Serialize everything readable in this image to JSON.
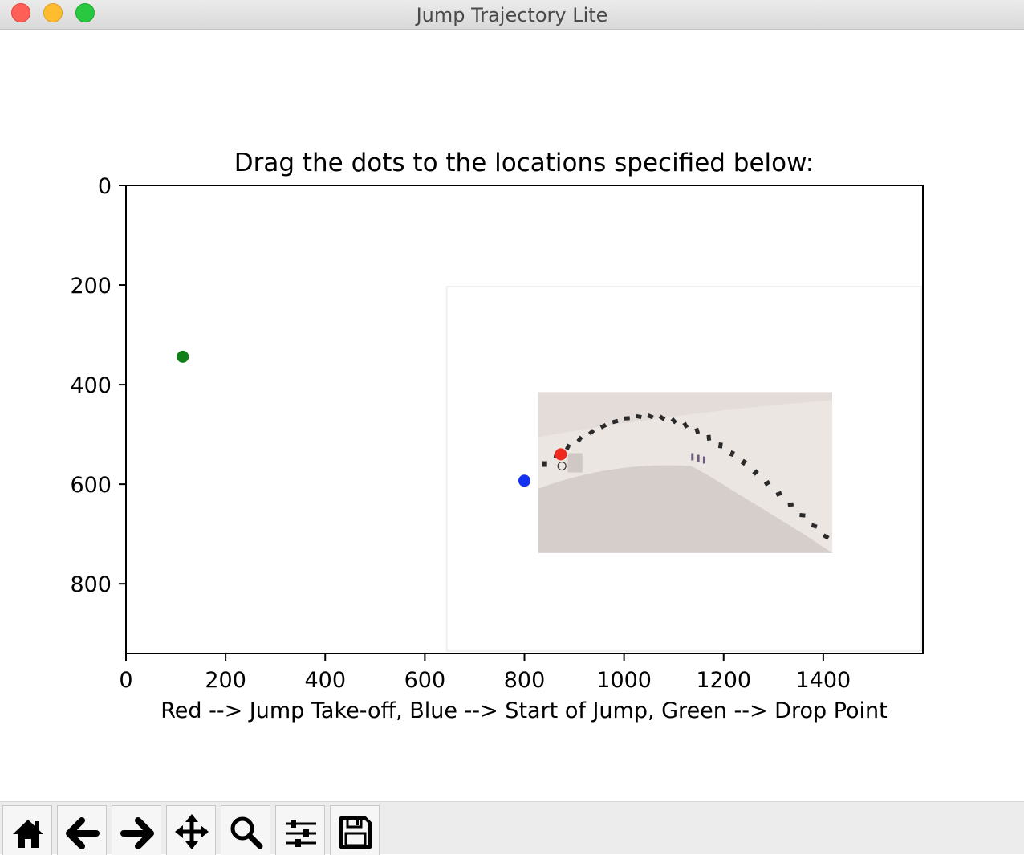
{
  "window": {
    "title": "Jump Trajectory Lite"
  },
  "chart_data": {
    "type": "scatter",
    "title": "Drag the dots to the locations specified below:",
    "xlabel": "Red --> Jump Take-off, Blue --> Start of Jump, Green --> Drop Point",
    "ylabel": "",
    "xlim": [
      0,
      1600
    ],
    "ylim": [
      940,
      0
    ],
    "xticks": [
      "0",
      "200",
      "400",
      "600",
      "800",
      "1000",
      "1200",
      "1400"
    ],
    "yticks": [
      "0",
      "200",
      "400",
      "600",
      "800"
    ],
    "xtick_values": [
      0,
      200,
      400,
      600,
      800,
      1000,
      1200,
      1400
    ],
    "ytick_values": [
      0,
      200,
      400,
      600,
      800
    ],
    "grid": false,
    "points": [
      {
        "name": "red-dot",
        "x": 873,
        "y": 540,
        "color": "#ee2a1f"
      },
      {
        "name": "blue-dot",
        "x": 800,
        "y": 593,
        "color": "#1431f0"
      },
      {
        "name": "green-dot",
        "x": 114,
        "y": 344,
        "color": "#118117"
      }
    ],
    "image": {
      "description": "snowboard jump sequence photo",
      "extent_x": [
        828,
        1418
      ],
      "extent_y": [
        415,
        738
      ]
    },
    "inset_frame": {
      "extent_x": [
        644,
        1597
      ],
      "extent_y": [
        203,
        935
      ]
    }
  },
  "toolbar": {
    "buttons": [
      {
        "name": "home-button",
        "icon": "home-icon"
      },
      {
        "name": "back-button",
        "icon": "arrow-left-icon"
      },
      {
        "name": "forward-button",
        "icon": "arrow-right-icon"
      },
      {
        "name": "pan-button",
        "icon": "move-icon"
      },
      {
        "name": "zoom-button",
        "icon": "magnifier-icon"
      },
      {
        "name": "configure-subplots-button",
        "icon": "sliders-icon"
      },
      {
        "name": "save-button",
        "icon": "floppy-icon"
      }
    ]
  }
}
